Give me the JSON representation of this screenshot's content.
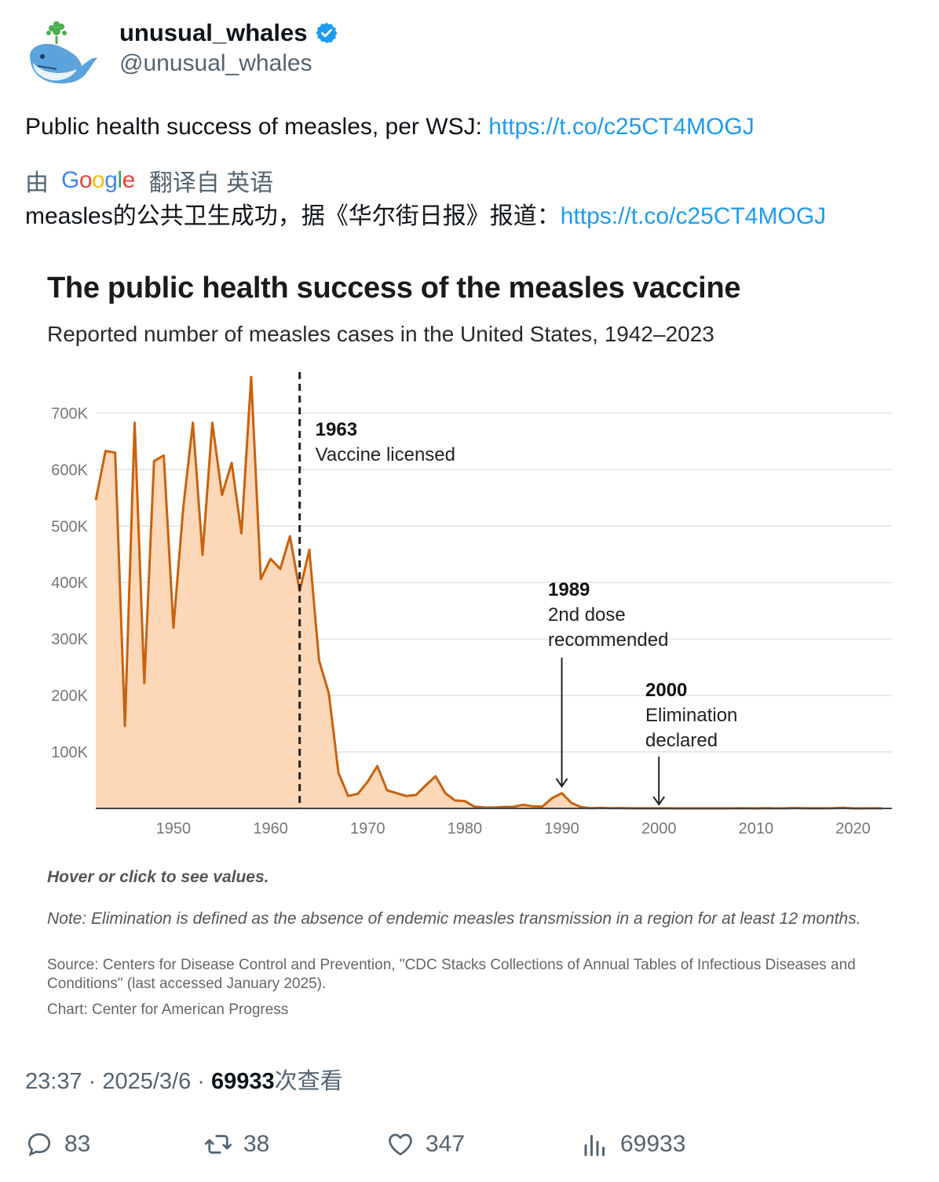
{
  "author": {
    "display_name": "unusual_whales",
    "handle": "@unusual_whales"
  },
  "tweet": {
    "text": "Public health success of measles, per WSJ: ",
    "link": "https://t.co/c25CT4MOGJ"
  },
  "translation": {
    "prefix": "由",
    "google": [
      "G",
      "o",
      "o",
      "g",
      "l",
      "e"
    ],
    "suffix": "翻译自 英语",
    "text": "measles的公共卫生成功，据《华尔街日报》报道：",
    "link": "https://t.co/c25CT4MOGJ"
  },
  "chart_data": {
    "type": "area",
    "title": "The public health success of the measles vaccine",
    "subtitle": "Reported number of measles cases in the United States, 1942–2023",
    "xlabel": "",
    "ylabel": "",
    "x_ticks": [
      "1950",
      "1960",
      "1970",
      "1980",
      "1990",
      "2000",
      "2010",
      "2020"
    ],
    "y_ticks": [
      "100K",
      "200K",
      "300K",
      "400K",
      "500K",
      "600K",
      "700K"
    ],
    "xlim": [
      1942,
      2023
    ],
    "ylim": [
      0,
      700000
    ],
    "grid": true,
    "colors": {
      "line": "#c8620e",
      "fill": "#fdd8b8"
    },
    "x": [
      1942,
      1943,
      1944,
      1945,
      1946,
      1947,
      1948,
      1949,
      1950,
      1951,
      1952,
      1953,
      1954,
      1955,
      1956,
      1957,
      1958,
      1959,
      1960,
      1961,
      1962,
      1963,
      1964,
      1965,
      1966,
      1967,
      1968,
      1969,
      1970,
      1971,
      1972,
      1973,
      1974,
      1975,
      1976,
      1977,
      1978,
      1979,
      1980,
      1981,
      1982,
      1983,
      1984,
      1985,
      1986,
      1987,
      1988,
      1989,
      1990,
      1991,
      1992,
      1993,
      1994,
      1995,
      1996,
      1997,
      1998,
      1999,
      2000,
      2001,
      2002,
      2003,
      2004,
      2005,
      2006,
      2007,
      2008,
      2009,
      2010,
      2011,
      2012,
      2013,
      2014,
      2015,
      2016,
      2017,
      2018,
      2019,
      2020,
      2021,
      2022,
      2023
    ],
    "values": [
      546000,
      633000,
      630000,
      146000,
      683000,
      222000,
      615000,
      625000,
      320000,
      531000,
      683000,
      449000,
      683000,
      555000,
      612000,
      487000,
      764000,
      406000,
      442000,
      424000,
      482000,
      385000,
      458000,
      262000,
      204000,
      63000,
      22000,
      26000,
      47000,
      75000,
      32000,
      27000,
      22000,
      24000,
      41000,
      57000,
      27000,
      14000,
      13000,
      3000,
      1700,
      1500,
      2600,
      2800,
      6300,
      3700,
      3400,
      18000,
      27000,
      9600,
      2200,
      310,
      960,
      300,
      510,
      140,
      100,
      100,
      86,
      116,
      44,
      56,
      37,
      66,
      55,
      43,
      140,
      71,
      63,
      220,
      55,
      187,
      667,
      188,
      86,
      120,
      375,
      1274,
      13,
      49,
      121,
      59
    ],
    "annotations": [
      {
        "year": "1963",
        "label": "Vaccine licensed"
      },
      {
        "year": "1989",
        "label": "2nd dose recommended",
        "lines": [
          "2nd dose",
          "recommended"
        ]
      },
      {
        "year": "2000",
        "label": "Elimination declared",
        "lines": [
          "Elimination",
          "declared"
        ]
      }
    ],
    "hover_note": "Hover or click to see values.",
    "note": "Note: Elimination is defined as the absence of endemic measles transmission in a region for at least 12 months.",
    "source": "Source: Centers for Disease Control and Prevention, \"CDC Stacks Collections of Annual Tables of Infectious Diseases and Conditions\" (last accessed January 2025).",
    "credit": "Chart: Center for American Progress"
  },
  "meta": {
    "time": "23:37 · 2025/3/6 · ",
    "views": "69933",
    "views_suffix": "次查看"
  },
  "actions": {
    "replies": "83",
    "reposts": "38",
    "likes": "347",
    "views": "69933"
  }
}
